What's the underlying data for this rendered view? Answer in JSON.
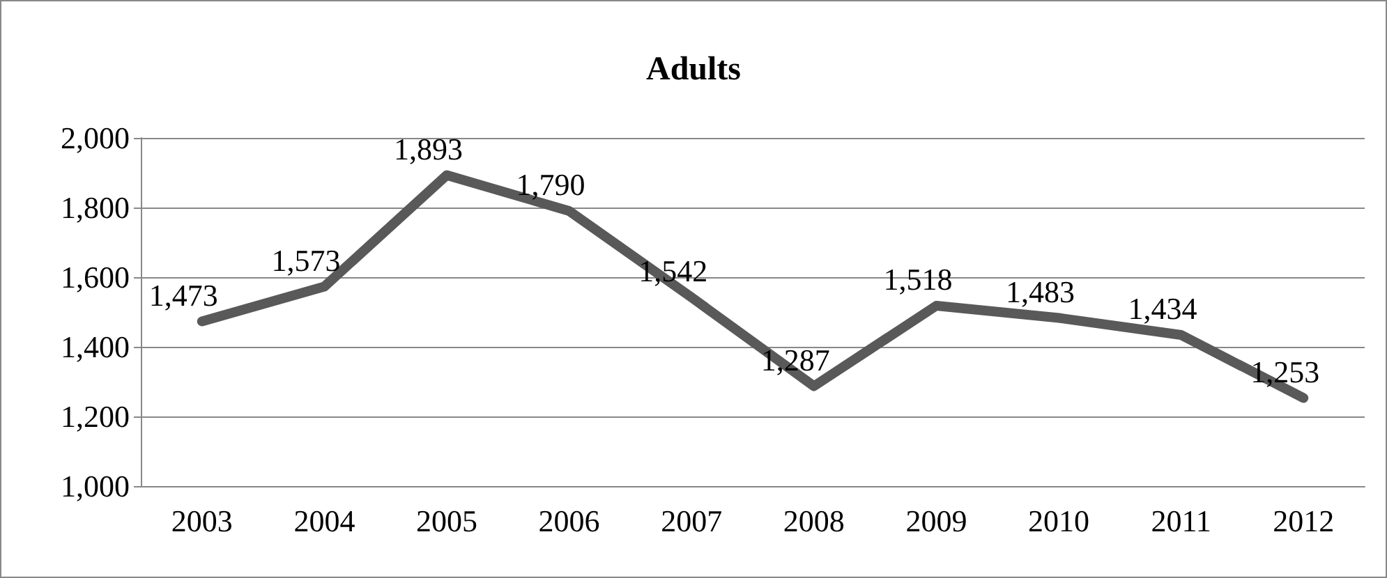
{
  "chart_data": {
    "type": "line",
    "title": "Adults",
    "categories": [
      "2003",
      "2004",
      "2005",
      "2006",
      "2007",
      "2008",
      "2009",
      "2010",
      "2011",
      "2012"
    ],
    "series": [
      {
        "color": "#595959",
        "values": [
          1473,
          1573,
          1893,
          1790,
          1542,
          1287,
          1518,
          1483,
          1434,
          1253
        ],
        "value_labels": [
          "1,473",
          "1,573",
          "1,893",
          "1,790",
          "1,542",
          "1,287",
          "1,518",
          "1,483",
          "1,434",
          "1,253"
        ]
      }
    ],
    "ylim": [
      1000,
      2000
    ],
    "yticks": [
      {
        "value": 1000,
        "label": "1,000"
      },
      {
        "value": 1200,
        "label": "1,200"
      },
      {
        "value": 1400,
        "label": "1,400"
      },
      {
        "value": 1600,
        "label": "1,600"
      },
      {
        "value": 1800,
        "label": "1,800"
      },
      {
        "value": 2000,
        "label": "2,000"
      }
    ],
    "grid": "y",
    "marker": "none",
    "line_style": "solid"
  }
}
